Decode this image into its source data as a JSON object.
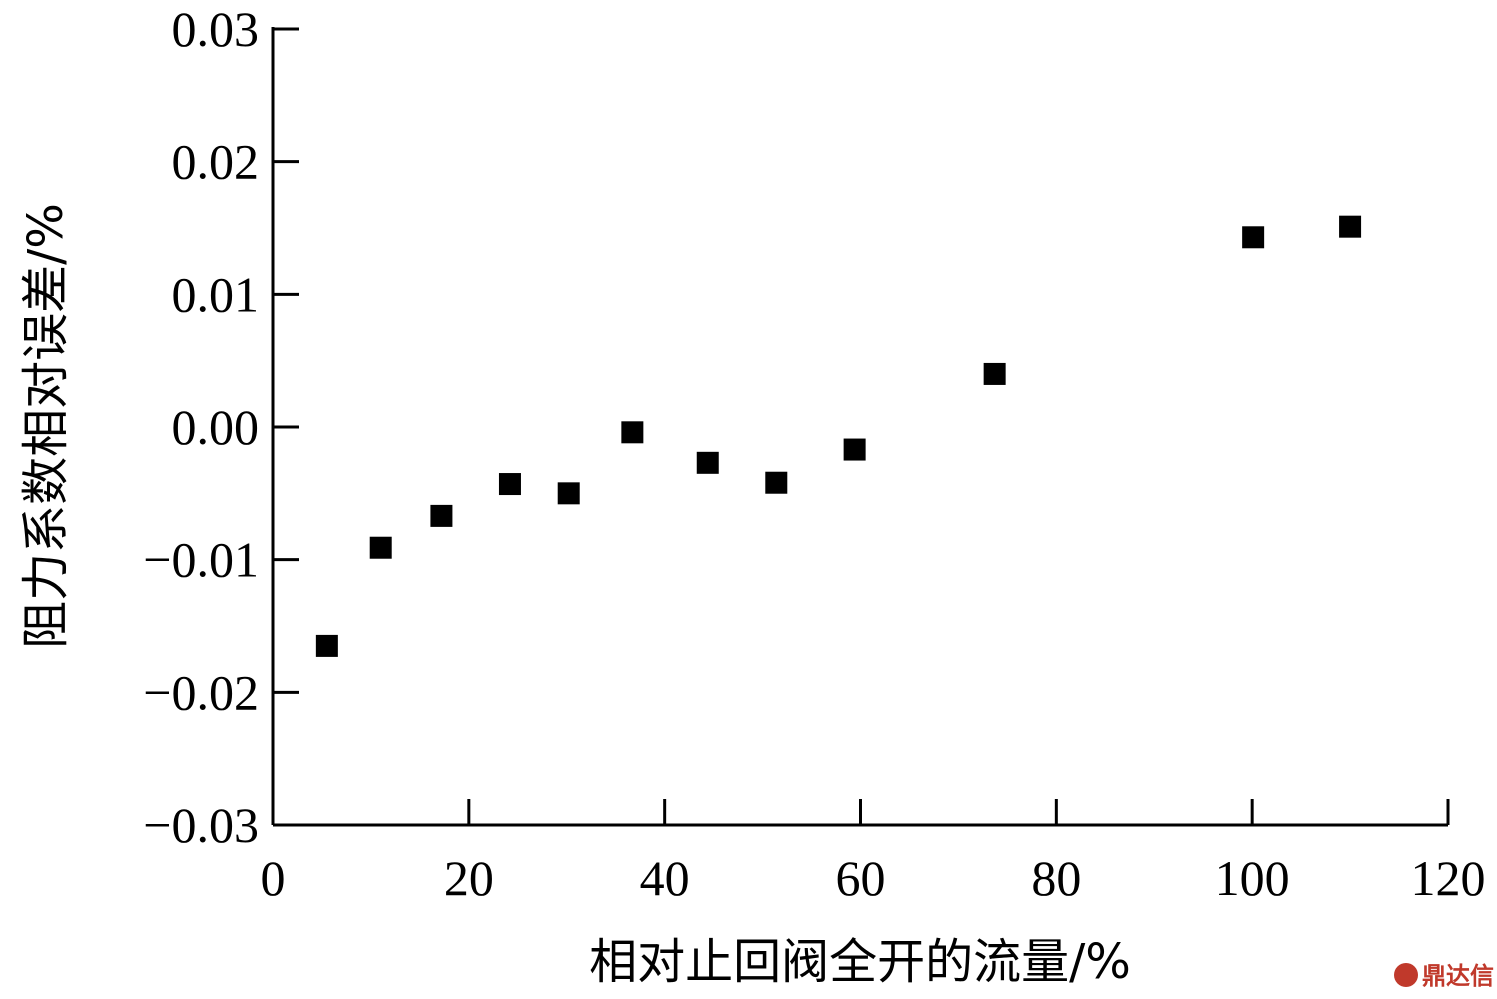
{
  "chart_data": {
    "type": "scatter",
    "xlabel": "相对止回阀全开的流量/%",
    "ylabel": "阻力系数相对误差/%",
    "xlim": [
      0,
      120
    ],
    "ylim": [
      -0.03,
      0.03
    ],
    "xticks": [
      0,
      20,
      40,
      60,
      80,
      100,
      120
    ],
    "yticks": [
      -0.03,
      -0.02,
      -0.01,
      0.0,
      0.01,
      0.02,
      0.03
    ],
    "xtick_labels": [
      "0",
      "20",
      "40",
      "60",
      "80",
      "100",
      "120"
    ],
    "ytick_labels": [
      "−0.03",
      "−0.02",
      "−0.01",
      "0.00",
      "0.01",
      "0.02",
      "0.03"
    ],
    "grid": false,
    "marker": "square",
    "marker_color": "#000000",
    "series": [
      {
        "points": [
          {
            "x": 5.5,
            "y": -0.0165
          },
          {
            "x": 11.0,
            "y": -0.0091
          },
          {
            "x": 17.2,
            "y": -0.0067
          },
          {
            "x": 24.2,
            "y": -0.0043
          },
          {
            "x": 30.2,
            "y": -0.005
          },
          {
            "x": 36.7,
            "y": -0.0004
          },
          {
            "x": 44.4,
            "y": -0.0027
          },
          {
            "x": 51.4,
            "y": -0.0042
          },
          {
            "x": 59.4,
            "y": -0.0017
          },
          {
            "x": 73.7,
            "y": 0.004
          },
          {
            "x": 100.1,
            "y": 0.0143
          },
          {
            "x": 110.0,
            "y": 0.0151
          }
        ]
      }
    ]
  },
  "watermark": {
    "text": "鼎达信",
    "color": "#c0392b"
  }
}
